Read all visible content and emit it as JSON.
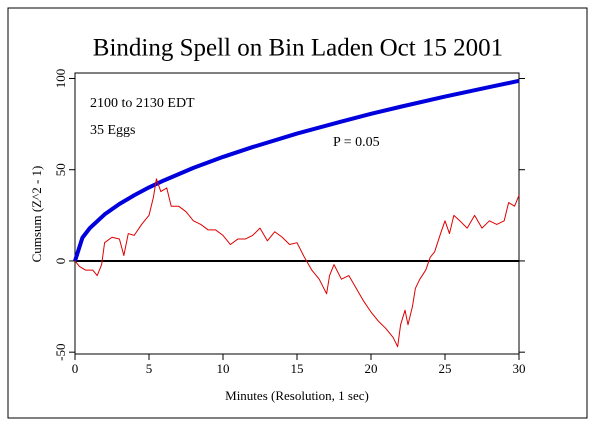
{
  "chart_data": {
    "type": "line",
    "title": "Binding Spell on Bin Laden Oct 15 2001",
    "xlabel": "Minutes (Resolution, 1 sec)",
    "ylabel": "Cumsum (Z^2 - 1)",
    "annotations": [
      {
        "text": "2100 to 2130 EDT",
        "color": "#cc0000"
      },
      {
        "text": "35 Eggs",
        "color": "#cc0000"
      },
      {
        "text": "P = 0.05",
        "color": "#0000cc"
      }
    ],
    "xlim": [
      0,
      30
    ],
    "ylim": [
      -51,
      103
    ],
    "xticks": [
      0,
      5,
      10,
      15,
      20,
      25,
      30
    ],
    "yticks": [
      -50,
      0,
      50,
      100
    ],
    "hline": 0,
    "series": [
      {
        "color": "#0000dd",
        "width": 4,
        "x": [
          0,
          0.5,
          1,
          2,
          3,
          4,
          5,
          6,
          8,
          10,
          12,
          15,
          18,
          20,
          22,
          25,
          28,
          30
        ],
        "values": [
          0,
          12.7,
          18,
          25.5,
          31.2,
          36,
          40.3,
          44.1,
          51,
          57,
          62.4,
          69.8,
          76.4,
          80.6,
          84.5,
          90.1,
          95.3,
          98.7
        ]
      },
      {
        "color": "#dd0000",
        "width": 1,
        "x": [
          0,
          0.3,
          0.7,
          1.2,
          1.5,
          1.8,
          2,
          2.5,
          3,
          3.3,
          3.6,
          4,
          4.5,
          5,
          5.3,
          5.5,
          5.8,
          6.2,
          6.5,
          7,
          7.5,
          8,
          8.5,
          9,
          9.5,
          10,
          10.5,
          11,
          11.5,
          12,
          12.5,
          13,
          13.5,
          14,
          14.5,
          15,
          15.5,
          16,
          16.5,
          17,
          17.2,
          17.5,
          18,
          18.5,
          19,
          19.5,
          20,
          20.5,
          21,
          21.5,
          21.8,
          22,
          22.3,
          22.5,
          22.8,
          23,
          23.3,
          23.7,
          24,
          24.3,
          24.7,
          25,
          25.3,
          25.6,
          26,
          26.5,
          27,
          27.5,
          28,
          28.5,
          29,
          29.3,
          29.7,
          30
        ],
        "values": [
          0,
          -3,
          -5,
          -5,
          -8,
          -2,
          10,
          13,
          12,
          3,
          15,
          14,
          20,
          25,
          35,
          45,
          38,
          40,
          30,
          30,
          27,
          22,
          20,
          17,
          17,
          14,
          9,
          12,
          12,
          14,
          18,
          11,
          16,
          13,
          9,
          10,
          2,
          -5,
          -10,
          -18,
          -8,
          -2,
          -10,
          -8,
          -15,
          -22,
          -28,
          -33,
          -37,
          -42,
          -47,
          -35,
          -27,
          -35,
          -25,
          -15,
          -10,
          -5,
          2,
          5,
          15,
          22,
          15,
          25,
          22,
          18,
          25,
          18,
          22,
          20,
          22,
          32,
          30,
          36
        ]
      }
    ]
  }
}
